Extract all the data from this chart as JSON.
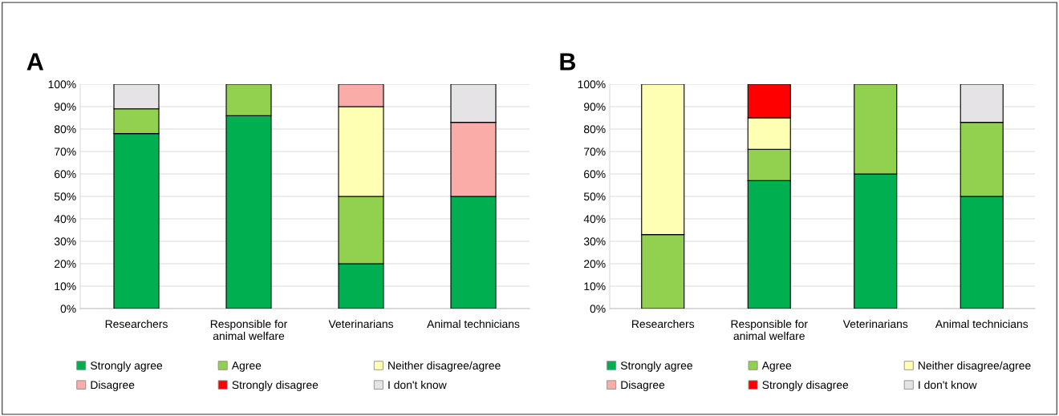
{
  "chart_data": [
    {
      "type": "bar",
      "title": "A",
      "stacked": true,
      "categories": [
        "Researchers",
        "Responsible for\nanimal welfare",
        "Veterinarians",
        "Animal technicians"
      ],
      "series": [
        {
          "name": "Strongly agree",
          "color": "#00b050",
          "values": [
            78,
            86,
            20,
            50
          ]
        },
        {
          "name": "Agree",
          "color": "#92d050",
          "values": [
            11,
            14,
            30,
            0
          ]
        },
        {
          "name": "Neither disagree/agree",
          "color": "#ffffb3",
          "values": [
            0,
            0,
            40,
            0
          ]
        },
        {
          "name": "Disagree",
          "color": "#f9aca8",
          "values": [
            0,
            0,
            10,
            33
          ]
        },
        {
          "name": "Strongly disagree",
          "color": "#ff0000",
          "values": [
            0,
            0,
            0,
            0
          ]
        },
        {
          "name": "I don't know",
          "color": "#e6e3e6",
          "values": [
            11,
            0,
            0,
            17
          ]
        }
      ],
      "ylim": [
        0,
        100
      ],
      "yticks": [
        {
          "value": 0,
          "label": "0%"
        },
        {
          "value": 10,
          "label": "10%"
        },
        {
          "value": 20,
          "label": "20%"
        },
        {
          "value": 30,
          "label": "30%"
        },
        {
          "value": 40,
          "label": "40%"
        },
        {
          "value": 50,
          "label": "50%"
        },
        {
          "value": 60,
          "label": "60%"
        },
        {
          "value": 70,
          "label": "70%"
        },
        {
          "value": 80,
          "label": "80%"
        },
        {
          "value": 90,
          "label": "90%"
        },
        {
          "value": 100,
          "label": "100%"
        }
      ],
      "grid": "y",
      "legend": "bottom"
    },
    {
      "type": "bar",
      "title": "B",
      "stacked": true,
      "categories": [
        "Researchers",
        "Responsible for\nanimal welfare",
        "Veterinarians",
        "Animal technicians"
      ],
      "series": [
        {
          "name": "Strongly agree",
          "color": "#00b050",
          "values": [
            0,
            57,
            60,
            50
          ]
        },
        {
          "name": "Agree",
          "color": "#92d050",
          "values": [
            33,
            14,
            40,
            33
          ]
        },
        {
          "name": "Neither disagree/agree",
          "color": "#ffffb3",
          "values": [
            67,
            14,
            0,
            0
          ]
        },
        {
          "name": "Disagree",
          "color": "#f9aca8",
          "values": [
            0,
            0,
            0,
            0
          ]
        },
        {
          "name": "Strongly disagree",
          "color": "#ff0000",
          "values": [
            0,
            15,
            0,
            0
          ]
        },
        {
          "name": "I don't know",
          "color": "#e6e3e6",
          "values": [
            0,
            0,
            0,
            17
          ]
        }
      ],
      "ylim": [
        0,
        100
      ],
      "yticks": [
        {
          "value": 0,
          "label": "0%"
        },
        {
          "value": 10,
          "label": "10%"
        },
        {
          "value": 20,
          "label": "20%"
        },
        {
          "value": 30,
          "label": "30%"
        },
        {
          "value": 40,
          "label": "40%"
        },
        {
          "value": 50,
          "label": "50%"
        },
        {
          "value": 60,
          "label": "60%"
        },
        {
          "value": 70,
          "label": "70%"
        },
        {
          "value": 80,
          "label": "80%"
        },
        {
          "value": 90,
          "label": "90%"
        },
        {
          "value": 100,
          "label": "100%"
        }
      ],
      "grid": "y",
      "legend": "bottom"
    }
  ]
}
